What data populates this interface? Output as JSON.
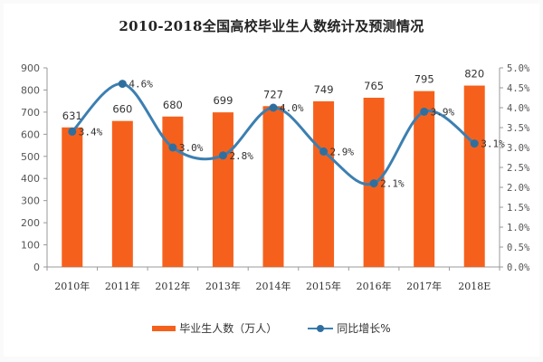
{
  "chart_data": {
    "type": "bar+line",
    "title": "2010-2018全国高校毕业生人数统计及预测情况",
    "categories": [
      "2010年",
      "2011年",
      "2012年",
      "2013年",
      "2014年",
      "2015年",
      "2016年",
      "2017年",
      "2018E"
    ],
    "series": [
      {
        "name": "毕业生人数（万人）",
        "type": "bar",
        "axis": "left",
        "color": "#f5611c",
        "values": [
          631,
          660,
          680,
          699,
          727,
          749,
          765,
          795,
          820
        ],
        "labels": [
          "631",
          "660",
          "680",
          "699",
          "727",
          "749",
          "765",
          "795",
          "820"
        ]
      },
      {
        "name": "同比增长%",
        "type": "line",
        "axis": "right",
        "color": "#3c7fb1",
        "values": [
          3.4,
          4.6,
          3.0,
          2.8,
          4.0,
          2.9,
          2.1,
          3.9,
          3.1
        ],
        "labels": [
          "3.4%",
          "4.6%",
          "3.0%",
          "2.8%",
          "4.0%",
          "2.9%",
          "2.1%",
          "3.9%",
          "3.1%"
        ]
      }
    ],
    "left_axis": {
      "ylim": [
        0,
        900
      ],
      "ticks": [
        "0",
        "100",
        "200",
        "300",
        "400",
        "500",
        "600",
        "700",
        "800",
        "900"
      ]
    },
    "right_axis": {
      "ylim": [
        0,
        5.0
      ],
      "ticks": [
        "0.0%",
        "0.5%",
        "1.0%",
        "1.5%",
        "2.0%",
        "2.5%",
        "3.0%",
        "3.5%",
        "4.0%",
        "4.5%",
        "5.0%"
      ]
    },
    "xlabel": "",
    "ylabel": "",
    "grid": false,
    "legend_position": "bottom"
  },
  "legend": {
    "bar_label": "毕业生人数（万人）",
    "line_label": "同比增长%"
  }
}
